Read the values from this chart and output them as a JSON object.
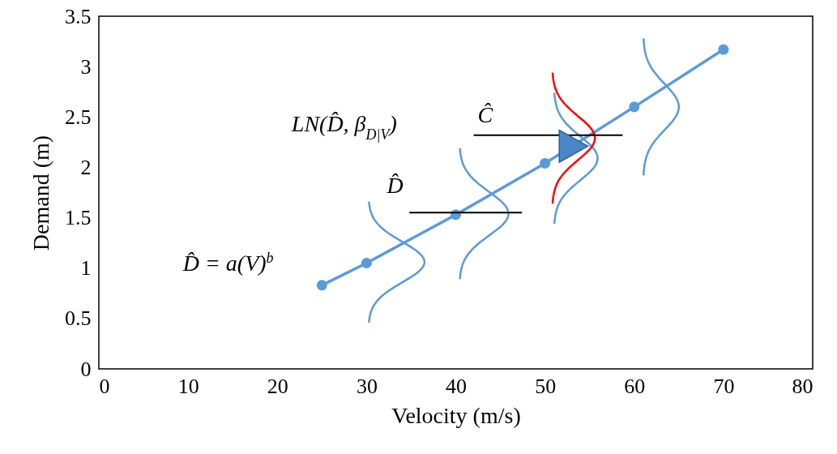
{
  "chart_data": {
    "type": "line",
    "xlabel": "Velocity (m/s)",
    "ylabel": "Demand (m)",
    "x": [
      25,
      30,
      40,
      50,
      60,
      70
    ],
    "series": [
      {
        "color": "#5b9bd5",
        "values": [
          0.83,
          1.05,
          1.53,
          2.04,
          2.6,
          3.17
        ]
      }
    ],
    "marker": "circle",
    "grid": false,
    "xlim": [
      0,
      80
    ],
    "xticks": [
      0,
      10,
      20,
      30,
      40,
      50,
      60,
      70,
      80
    ],
    "ylim": [
      0,
      3.5
    ],
    "yticks": [
      0,
      0.5,
      1,
      1.5,
      2,
      2.5,
      3,
      3.5
    ],
    "annotations": [
      "D̂ = a(V)$^{b}$",
      "LN(D̂, β$_{D|V}$)",
      "D̂",
      "Ĉ"
    ]
  }
}
